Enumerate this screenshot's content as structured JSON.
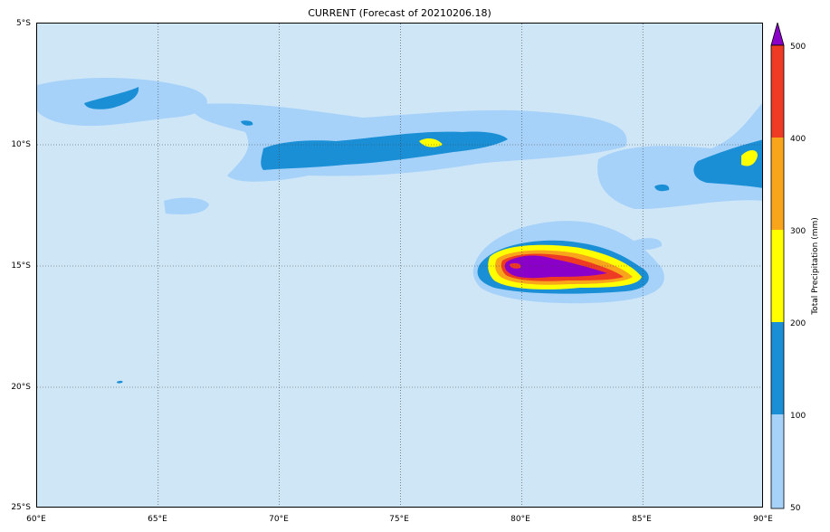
{
  "title": "CURRENT (Forecast of 20210206.18)",
  "map": {
    "lat_ticks": [
      "5°S",
      "10°S",
      "15°S",
      "20°S",
      "25°S"
    ],
    "lon_ticks": [
      "60°E",
      "65°E",
      "70°E",
      "75°E",
      "80°E",
      "85°E",
      "90°E"
    ],
    "lat_range": [
      -25,
      -5
    ],
    "lon_range": [
      60,
      90
    ],
    "grid": true,
    "background_color": "#cfe6f6"
  },
  "colorbar": {
    "label": "Total Precipitation (mm)",
    "ticks": [
      "50",
      "100",
      "200",
      "300",
      "400",
      "500"
    ],
    "colors": [
      "#a6d2fa",
      "#1a8fd6",
      "#ffff00",
      "#f8a51b",
      "#ef3b23",
      "#8b00c9"
    ],
    "extend": "max"
  }
}
